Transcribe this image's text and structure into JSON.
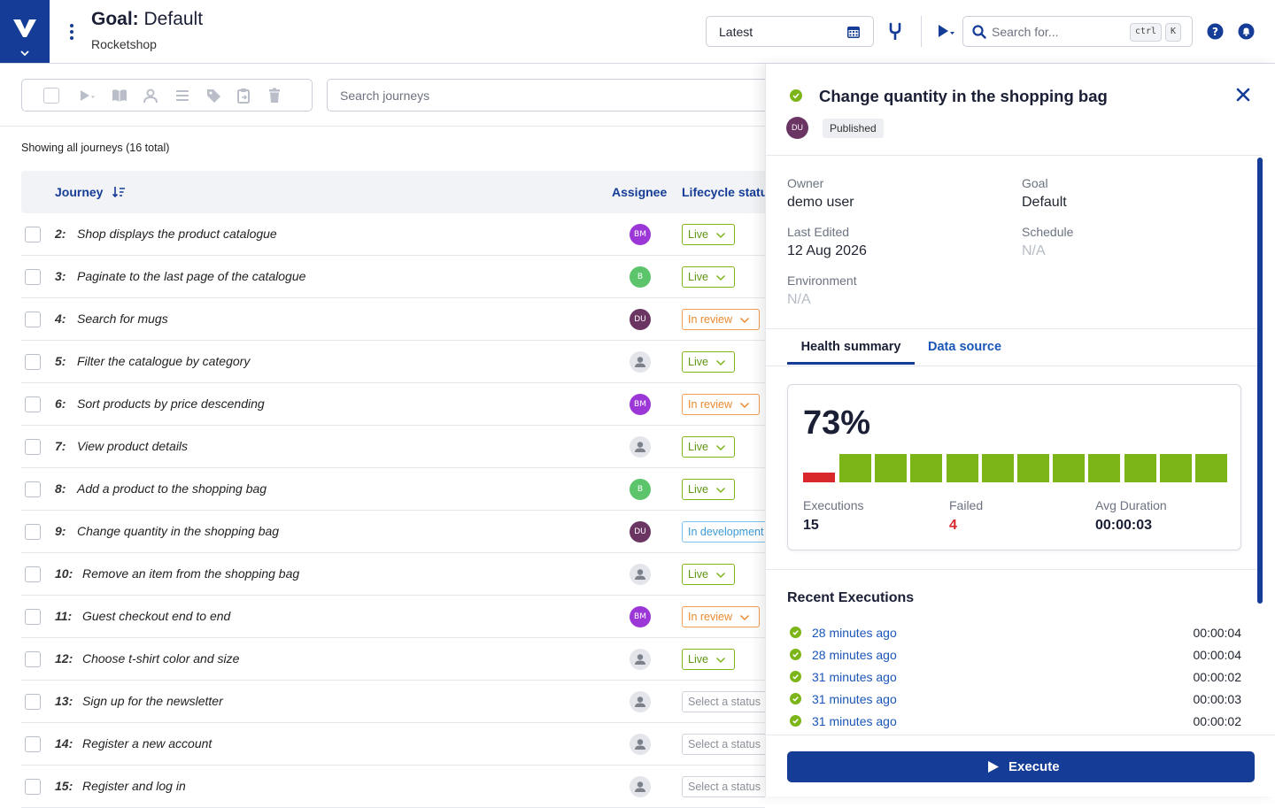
{
  "header": {
    "goal_label": "Goal:",
    "goal_name": "Default",
    "project": "Rocketshop",
    "version_select": "Latest",
    "search_placeholder": "Search for...",
    "shortcut_keys": [
      "ctrl",
      "K"
    ]
  },
  "journeys": {
    "search_placeholder": "Search journeys",
    "showing_text": "Showing all journeys (16 total)",
    "columns": {
      "journey": "Journey",
      "assignee": "Assignee",
      "lifecycle": "Lifecycle status"
    },
    "rows": [
      {
        "num": "2:",
        "name": "Shop displays the product catalogue",
        "assignee": "BM",
        "status": "Live"
      },
      {
        "num": "3:",
        "name": "Paginate to the last page of the catalogue",
        "assignee": "B",
        "status": "Live"
      },
      {
        "num": "4:",
        "name": "Search for mugs",
        "assignee": "DU",
        "status": "In review"
      },
      {
        "num": "5:",
        "name": "Filter the catalogue by category",
        "assignee": "",
        "status": "Live"
      },
      {
        "num": "6:",
        "name": "Sort products by price descending",
        "assignee": "BM",
        "status": "In review"
      },
      {
        "num": "7:",
        "name": "View product details",
        "assignee": "",
        "status": "Live"
      },
      {
        "num": "8:",
        "name": "Add a product to the shopping bag",
        "assignee": "B",
        "status": "Live"
      },
      {
        "num": "9:",
        "name": "Change quantity in the shopping bag",
        "assignee": "DU",
        "status": "In development"
      },
      {
        "num": "10:",
        "name": "Remove an item from the shopping bag",
        "assignee": "",
        "status": "Live"
      },
      {
        "num": "11:",
        "name": "Guest checkout end to end",
        "assignee": "BM",
        "status": "In review"
      },
      {
        "num": "12:",
        "name": "Choose t-shirt color and size",
        "assignee": "",
        "status": "Live"
      },
      {
        "num": "13:",
        "name": "Sign up for the newsletter",
        "assignee": "",
        "status": "Select a status"
      },
      {
        "num": "14:",
        "name": "Register a new account",
        "assignee": "",
        "status": "Select a status"
      },
      {
        "num": "15:",
        "name": "Register and log in",
        "assignee": "",
        "status": "Select a status"
      }
    ]
  },
  "panel": {
    "title": "Change quantity in the shopping bag",
    "avatar": "DU",
    "badge": "Published",
    "owner_label": "Owner",
    "owner": "demo user",
    "goal_label": "Goal",
    "goal": "Default",
    "edited_label": "Last Edited",
    "edited": "12 Aug 2026",
    "schedule_label": "Schedule",
    "schedule": "N/A",
    "env_label": "Environment",
    "env": "N/A",
    "tabs": [
      "Health summary",
      "Data source"
    ],
    "health": {
      "percent": "73%",
      "bars": [
        "fail",
        "pass",
        "pass",
        "pass",
        "pass",
        "pass",
        "pass",
        "pass",
        "pass",
        "pass",
        "pass",
        "pass"
      ],
      "executions_label": "Executions",
      "executions": "15",
      "failed_label": "Failed",
      "failed": "4",
      "duration_label": "Avg Duration",
      "duration": "00:00:03"
    },
    "recent_title": "Recent Executions",
    "recent": [
      {
        "when": "28 minutes ago",
        "duration": "00:00:04"
      },
      {
        "when": "28 minutes ago",
        "duration": "00:00:04"
      },
      {
        "when": "31 minutes ago",
        "duration": "00:00:02"
      },
      {
        "when": "31 minutes ago",
        "duration": "00:00:03"
      },
      {
        "when": "31 minutes ago",
        "duration": "00:00:02"
      }
    ],
    "execute_label": "Execute"
  },
  "colors": {
    "brand": "#153c96",
    "pass": "#7cb518",
    "fail": "#d8282c",
    "bm": "#9b37d6",
    "b": "#5cc46a",
    "du": "#6a3563"
  }
}
